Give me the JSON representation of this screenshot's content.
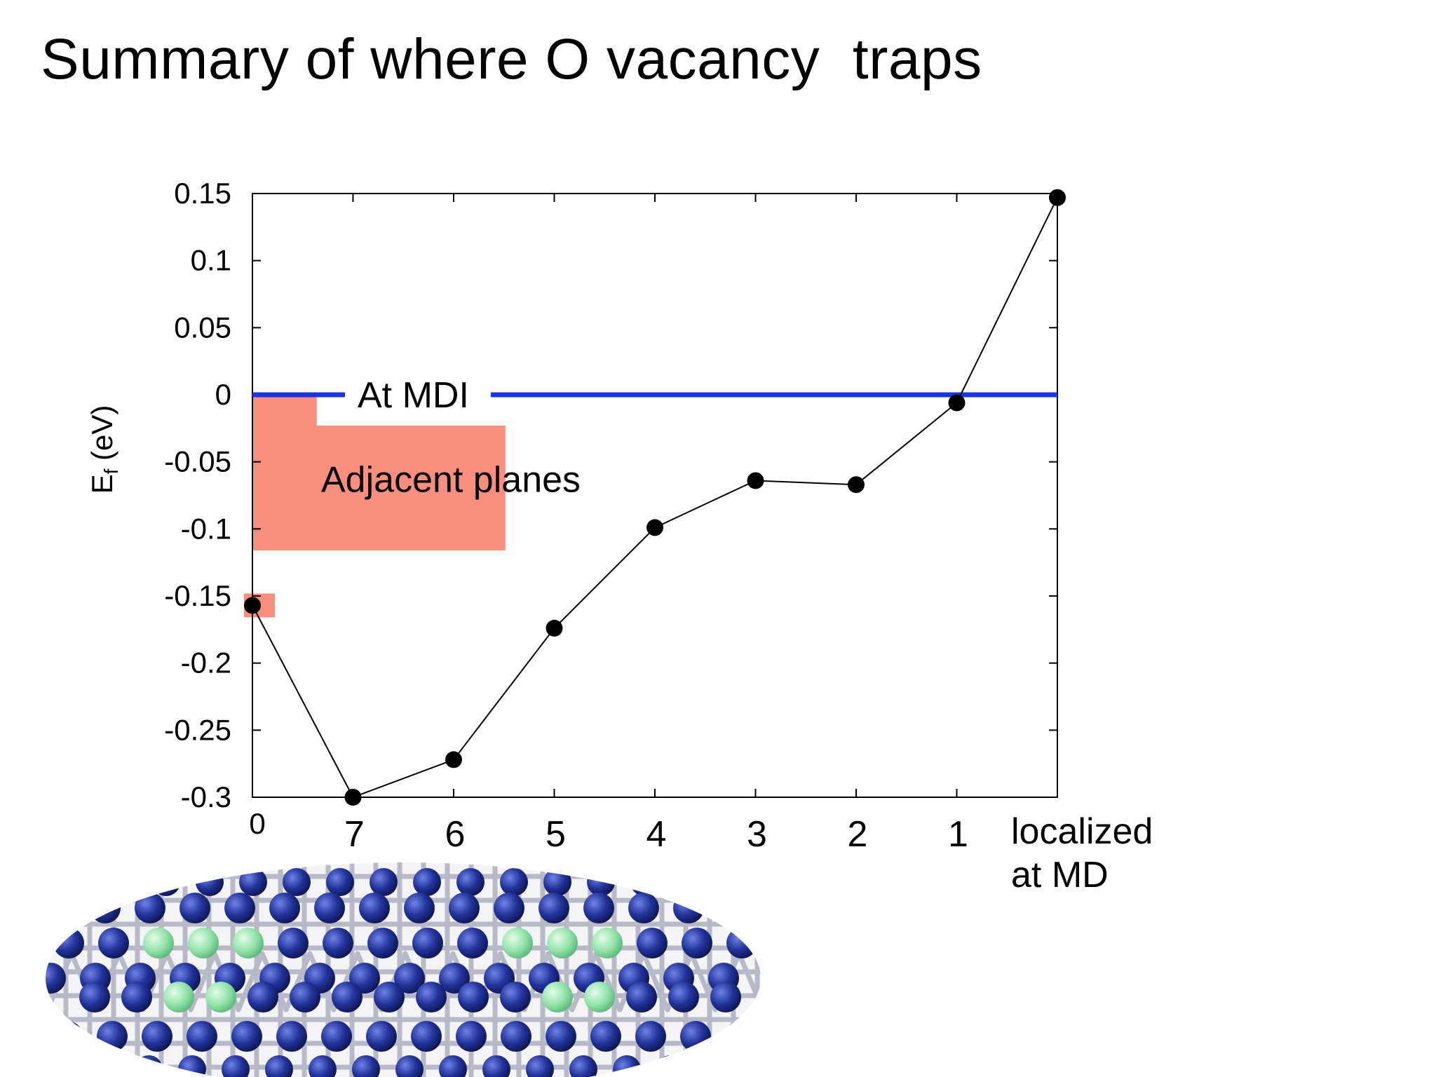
{
  "slide": {
    "title": "Summary of where O vacancy  traps"
  },
  "colors": {
    "reference_line": "#1a35e0",
    "region_fill": "#f88e7e",
    "series": "#000000",
    "atom_blue": "#1c2c8a",
    "atom_green": "#8fe3a8"
  },
  "illustration": {
    "icon": "atomic-lattice-illustration"
  },
  "chart_data": {
    "type": "line",
    "title": "",
    "xlabel": "",
    "ylabel": "E",
    "ylabel_subscript": "f",
    "ylabel_unit": " (eV)",
    "categories": [
      "0",
      "7",
      "6",
      "5",
      "4",
      "3",
      "2",
      "1",
      "localized at MD"
    ],
    "category_label_lines": [
      [
        "0"
      ],
      [
        "7"
      ],
      [
        "6"
      ],
      [
        "5"
      ],
      [
        "4"
      ],
      [
        "3"
      ],
      [
        "2"
      ],
      [
        "1"
      ],
      [
        "localized",
        "at MD"
      ]
    ],
    "ylim": [
      -0.3,
      0.15
    ],
    "yticks": [
      0.15,
      0.1,
      0.05,
      0,
      -0.05,
      -0.1,
      -0.15,
      -0.2,
      -0.25,
      -0.3
    ],
    "ytick_labels": [
      "0.15",
      "0.1",
      "0.05",
      "0",
      "-0.05",
      "-0.1",
      "-0.15",
      "-0.2",
      "-0.25",
      "-0.3"
    ],
    "grid": false,
    "series": [
      {
        "values": [
          -0.157,
          -0.3,
          -0.272,
          -0.174,
          -0.099,
          -0.064,
          -0.067,
          -0.006,
          0.147
        ]
      }
    ],
    "reference_line": {
      "y": 0,
      "label": "At MDI"
    },
    "shaded_region": {
      "label": "Adjacent planes",
      "y_top": 0,
      "y_step": -0.023,
      "y_bottom": -0.116
    }
  }
}
